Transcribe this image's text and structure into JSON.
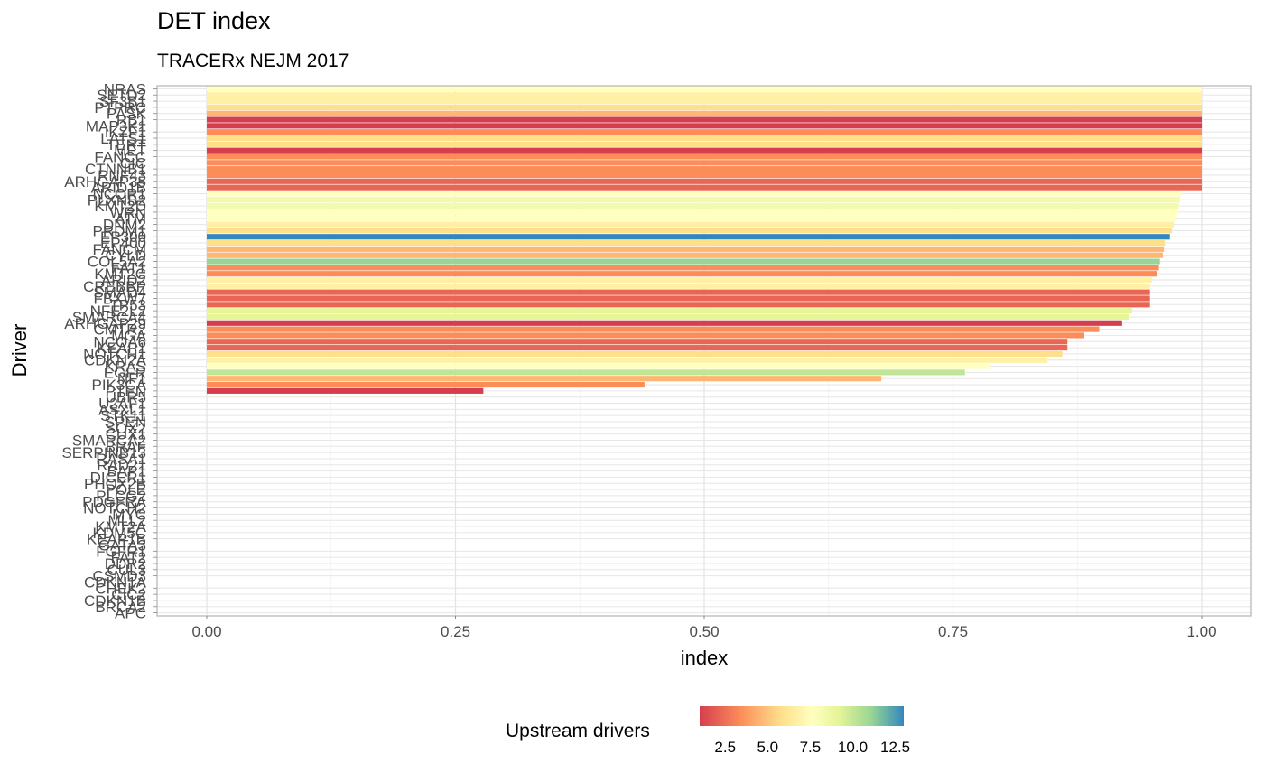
{
  "chart_data": {
    "type": "bar",
    "orientation": "horizontal",
    "title": "DET index",
    "subtitle": "TRACERx NEJM 2017",
    "xlabel": "index",
    "ylabel": "Driver",
    "xlim": [
      0,
      1
    ],
    "x_ticks": [
      "0.00",
      "0.25",
      "0.50",
      "0.75",
      "1.00"
    ],
    "grid": true,
    "legend": {
      "title": "Upstream drivers",
      "placement": "bottom",
      "ticks": [
        "2.5",
        "5.0",
        "7.5",
        "10.0",
        "12.5"
      ],
      "range": [
        1,
        13
      ],
      "palette": "Spectral",
      "colors": [
        "#d53e4f",
        "#fc8d59",
        "#fee08b",
        "#ffffbf",
        "#e6f598",
        "#99d594",
        "#3288bd"
      ]
    },
    "categories": [
      "NRAS",
      "SETD2",
      "SF3B1",
      "PTPRC",
      "PASK",
      "RB1",
      "MAP3K1",
      "IKZF1",
      "LATS1",
      "TERT",
      "MET",
      "FANCC",
      "CIC",
      "CTNNB1",
      "RNF43",
      "ARHGAP35",
      "ARID1B",
      "NCOR1",
      "PLXNB2",
      "KMT2D",
      "WRN",
      "ATM",
      "DNM2",
      "PRDM1",
      "EP300",
      "EP400",
      "FANCM",
      "CYLD",
      "COL5A2",
      "FAT1",
      "KMT2C",
      "ARID2",
      "CREBBP",
      "SMAD4",
      "FBXW7",
      "TP53",
      "NFE2L2",
      "SMARCA4",
      "ARHGAP29",
      "CMTR2",
      "MGA",
      "NCOA6",
      "KEAP1",
      "NOTCH1",
      "CDKN2A",
      "KRAS",
      "EGFR",
      "NF1",
      "PIK3CA",
      "PTEN",
      "UBR5",
      "U2AF1",
      "ASXL1",
      "STK11",
      "SPEN",
      "SOX2",
      "CUX1",
      "SMARCA2",
      "BRAF",
      "SERPINB13",
      "RASA1",
      "RAD21",
      "BAP1",
      "DICER1",
      "PHOX2B",
      "POLE",
      "PLCG2",
      "PDGFRA",
      "NOTCH2",
      "MYC",
      "MLL2",
      "KMT2A",
      "KDM5C",
      "KEAP1B",
      "GATA3",
      "FGFR1",
      "FAT2",
      "DDR2",
      "CUL3",
      "CSMD3",
      "CDKN1A",
      "CHEK2",
      "CIC2",
      "CDKN1B",
      "BRCA2",
      "APC"
    ],
    "values": [
      1.0,
      1.0,
      1.0,
      1.0,
      1.0,
      1.0,
      1.0,
      1.0,
      1.0,
      1.0,
      1.0,
      1.0,
      1.0,
      1.0,
      1.0,
      1.0,
      1.0,
      0.98,
      0.978,
      0.977,
      0.976,
      0.975,
      0.972,
      0.97,
      0.968,
      0.963,
      0.962,
      0.961,
      0.958,
      0.957,
      0.955,
      0.95,
      0.948,
      0.948,
      0.948,
      0.948,
      0.93,
      0.927,
      0.92,
      0.897,
      0.882,
      0.865,
      0.865,
      0.86,
      0.845,
      0.787,
      0.762,
      0.678,
      0.44,
      0.278,
      0,
      0,
      0,
      0,
      0,
      0,
      0,
      0,
      0,
      0,
      0,
      0,
      0,
      0,
      0,
      0,
      0,
      0,
      0,
      0,
      0,
      0,
      0,
      0,
      0,
      0,
      0,
      0,
      0,
      0,
      0,
      0,
      0,
      0,
      0,
      0
    ],
    "upstream": [
      7,
      6,
      6,
      5,
      4,
      1,
      1,
      3,
      5,
      5,
      1,
      3,
      3,
      3,
      3,
      2,
      2,
      7,
      8,
      8,
      7,
      7,
      6,
      5,
      13,
      5,
      4,
      4,
      11,
      3,
      3,
      6,
      6,
      2,
      2,
      2,
      9,
      9,
      1,
      3,
      3,
      2,
      2,
      5,
      6,
      7,
      10,
      4,
      3,
      1,
      0,
      0,
      0,
      0,
      0,
      0,
      0,
      0,
      0,
      0,
      0,
      0,
      0,
      0,
      0,
      0,
      0,
      0,
      0,
      0,
      0,
      0,
      0,
      0,
      0,
      0,
      0,
      0,
      0,
      0,
      0,
      0,
      0,
      0,
      0,
      0
    ]
  }
}
